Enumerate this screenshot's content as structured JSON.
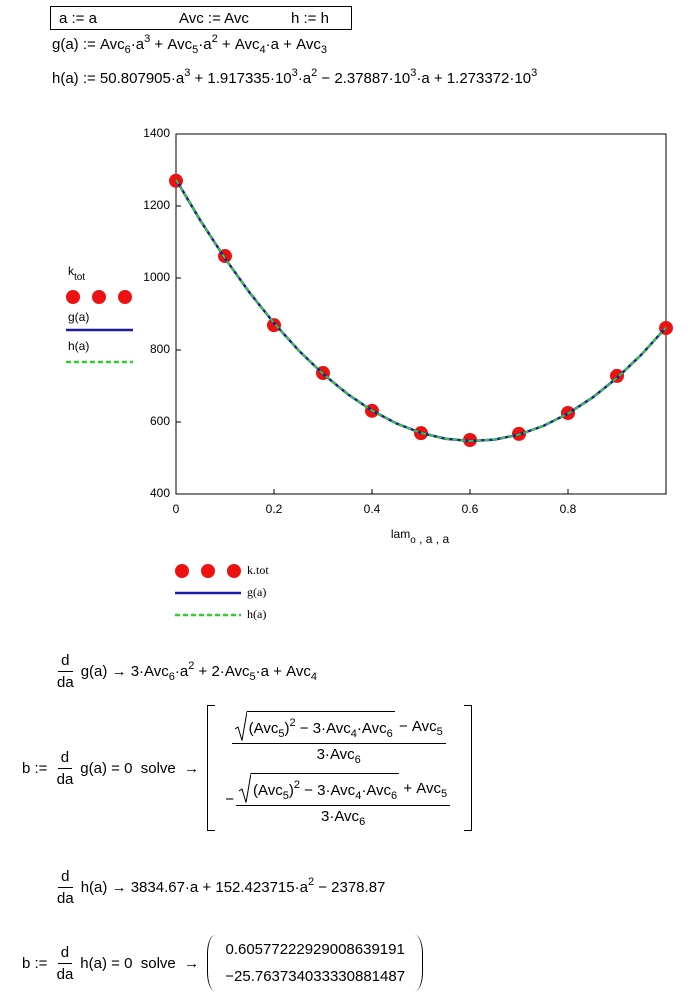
{
  "definitions": [
    "a := a",
    "Avc := Avc",
    "h := h"
  ],
  "g_definition": [
    "g(a) := ",
    {
      "text": "Avc",
      "sub": "6"
    },
    "·",
    {
      "text": "a",
      "sup": "3"
    },
    " + ",
    {
      "text": "Avc",
      "sub": "5"
    },
    "·",
    {
      "text": "a",
      "sup": "2"
    },
    " + ",
    {
      "text": "Avc",
      "sub": "4"
    },
    "·a + ",
    {
      "text": "Avc",
      "sub": "3"
    }
  ],
  "h_definition": [
    "h(a) := 50.807905·",
    {
      "text": "a",
      "sup": "3"
    },
    " + 1.917335·",
    {
      "text": "10",
      "sup": "3"
    },
    "·",
    {
      "text": "a",
      "sup": "2"
    },
    " − 2.37887·",
    {
      "text": "10",
      "sup": "3"
    },
    "·a + 1.273372·",
    {
      "text": "10",
      "sup": "3"
    }
  ],
  "chart_data": {
    "type": "line",
    "ylabel": [
      {
        "text": "k",
        "sub": "tot"
      },
      "g(a)",
      "h(a)"
    ],
    "xlabel": [
      {
        "text": "lam",
        "sub": "o"
      },
      " , a , a"
    ],
    "xlim": [
      0,
      1
    ],
    "ylim": [
      400,
      1400
    ],
    "xticks": [
      0,
      0.2,
      0.4,
      0.6,
      0.8
    ],
    "yticks": [
      400,
      600,
      800,
      1000,
      1200,
      1400
    ],
    "series": [
      {
        "name": "k.tot",
        "color": "#ee1111",
        "style": "dots",
        "x": [
          0,
          0.1,
          0.2,
          0.3,
          0.4,
          0.5,
          0.6,
          0.7,
          0.8,
          0.9,
          1.0
        ],
        "values": [
          1270,
          1061,
          869,
          736,
          631,
          569,
          550,
          567,
          625,
          728,
          861
        ]
      },
      {
        "name": "g(a)",
        "color": "#1a1aa6",
        "style": "solid",
        "x": [
          0,
          0.05,
          0.1,
          0.15,
          0.2,
          0.25,
          0.3,
          0.35,
          0.4,
          0.45,
          0.5,
          0.55,
          0.6,
          0.65,
          0.7,
          0.75,
          0.8,
          0.85,
          0.9,
          0.95,
          1.0
        ],
        "values": [
          1273.4,
          1159.2,
          1054.7,
          959.9,
          874.7,
          799.3,
          733.6,
          677.8,
          631.8,
          595.8,
          569.6,
          553.4,
          547.3,
          551.1,
          565.1,
          589.2,
          623.4,
          667.8,
          722.5,
          787.4,
          862.7
        ]
      },
      {
        "name": "h(a)",
        "color": "#33cc33",
        "style": "dashed",
        "x": [
          0,
          0.05,
          0.1,
          0.15,
          0.2,
          0.25,
          0.3,
          0.35,
          0.4,
          0.45,
          0.5,
          0.55,
          0.6,
          0.65,
          0.7,
          0.75,
          0.8,
          0.85,
          0.9,
          0.95,
          1.0
        ],
        "values": [
          1273.4,
          1159.2,
          1054.7,
          959.9,
          874.7,
          799.3,
          733.6,
          677.8,
          631.8,
          595.8,
          569.6,
          553.4,
          547.3,
          551.1,
          565.1,
          589.2,
          623.4,
          667.8,
          722.5,
          787.4,
          862.7
        ]
      }
    ]
  },
  "g_derivative": [
    {
      "num": "d",
      "den": "da"
    },
    "g(a) → 3·",
    {
      "text": "Avc",
      "sub": "6"
    },
    "·",
    {
      "text": "a",
      "sup": "2"
    },
    " + 2·",
    {
      "text": "Avc",
      "sub": "5"
    },
    "·a + ",
    {
      "text": "Avc",
      "sub": "4"
    }
  ],
  "g_solve": [
    "b := ",
    {
      "num": "d",
      "den": "da"
    },
    "g(a) = 0  solve  → ",
    {
      "bracket": "square",
      "matrix": [
        [
          {
            "num": [
              {
                "sqrt": [
                  {
                    "text": "(Avc",
                    "sub": "5"
                  },
                  {
                    "text": ")",
                    "sup": "2"
                  },
                  " − 3·",
                  {
                    "text": "Avc",
                    "sub": "4"
                  },
                  "·",
                  {
                    "text": "Avc",
                    "sub": "6"
                  }
                ]
              },
              " − ",
              {
                "text": "Avc",
                "sub": "5"
              }
            ],
            "den": [
              "3·",
              {
                "text": "Avc",
                "sub": "6"
              }
            ]
          }
        ],
        [
          "−",
          {
            "num": [
              {
                "sqrt": [
                  {
                    "text": "(Avc",
                    "sub": "5"
                  },
                  {
                    "text": ")",
                    "sup": "2"
                  },
                  " − 3·",
                  {
                    "text": "Avc",
                    "sub": "4"
                  },
                  "·",
                  {
                    "text": "Avc",
                    "sub": "6"
                  }
                ]
              },
              " + ",
              {
                "text": "Avc",
                "sub": "5"
              }
            ],
            "den": [
              "3·",
              {
                "text": "Avc",
                "sub": "6"
              }
            ]
          }
        ]
      ]
    }
  ],
  "h_derivative": [
    {
      "num": "d",
      "den": "da"
    },
    "h(a) → 3834.67·a + 152.423715·",
    {
      "text": "a",
      "sup": "2"
    },
    " − 2378.87"
  ],
  "h_solve": [
    "b := ",
    {
      "num": "d",
      "den": "da"
    },
    "h(a) = 0  solve  → ",
    {
      "bracket": "paren",
      "matrix": [
        [
          "0.60577222929008639191"
        ],
        [
          "−25.763734033330881487"
        ]
      ]
    }
  ]
}
